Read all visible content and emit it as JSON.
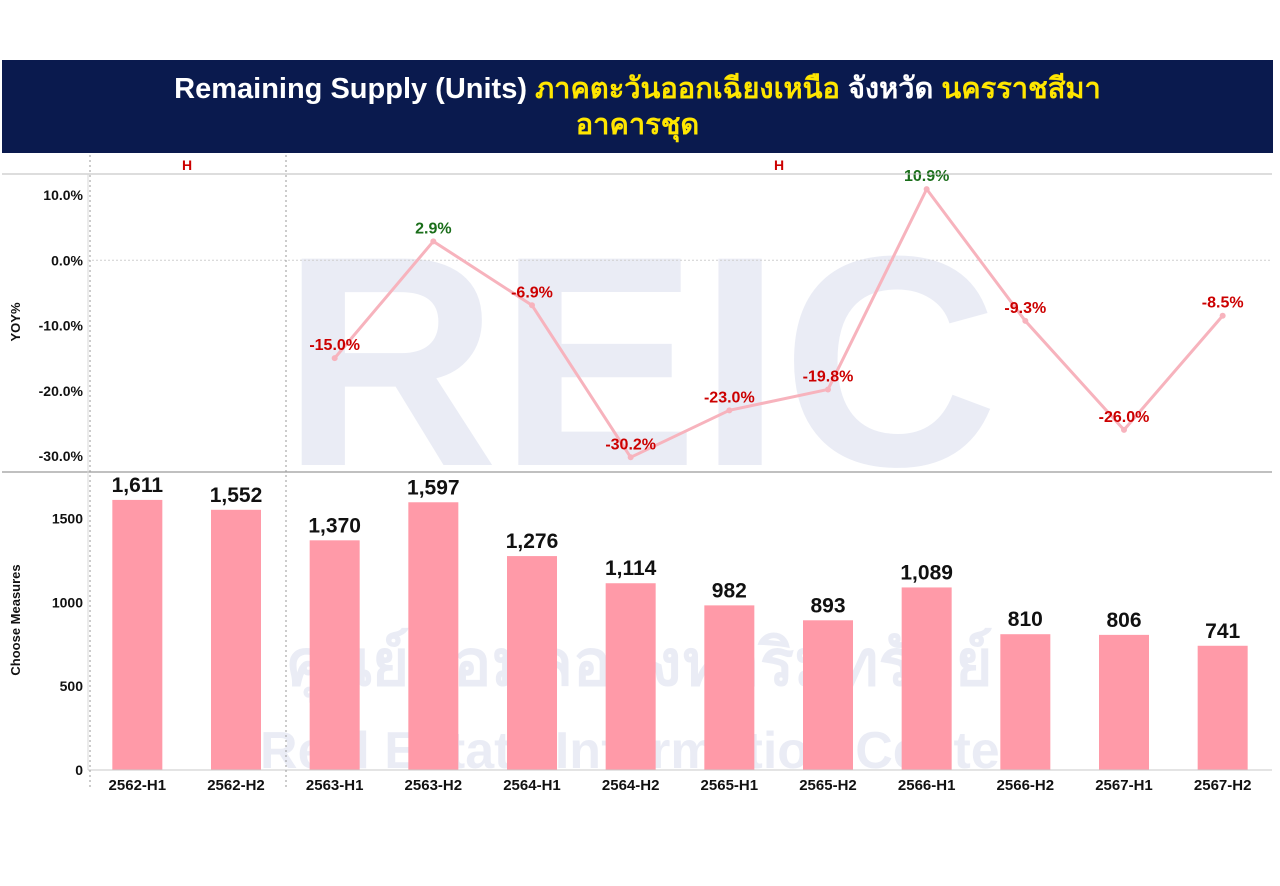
{
  "header": {
    "title_part1": "Remaining Supply (Units)",
    "title_part2": "ภาคตะวันออกเฉียงเหนือ",
    "title_part3": "จังหวัด",
    "title_part4": "นครราชสีมา",
    "subtitle": "อาคารชุด"
  },
  "watermark": {
    "logo": "REIC",
    "thai": "ศูนย์ข้อมูลอสังหาริมทรัพย์",
    "english": "Real Estate Information Center"
  },
  "colors": {
    "title_bg": "#0a1a4e",
    "bar": "#ff9aa8",
    "line": "#f7b3bd",
    "negative_label": "#cc0000",
    "positive_label": "#1a6e1a",
    "h_marker": "#cc0000"
  },
  "chart_data": [
    {
      "type": "line",
      "ylabel": "YOY%",
      "ylim": [
        -30,
        10
      ],
      "yticks": [
        "10.0%",
        "0.0%",
        "-10.0%",
        "-20.0%",
        "-30.0%"
      ],
      "grid": "dotted at 0",
      "group_markers": [
        "H",
        "H"
      ],
      "categories": [
        "2562-H1",
        "2562-H2",
        "2563-H1",
        "2563-H2",
        "2564-H1",
        "2564-H2",
        "2565-H1",
        "2565-H2",
        "2566-H1",
        "2566-H2",
        "2567-H1",
        "2567-H2"
      ],
      "values": [
        null,
        null,
        -15.0,
        2.9,
        -6.9,
        -30.2,
        -23.0,
        -19.8,
        10.9,
        -9.3,
        -26.0,
        -8.5
      ],
      "labels": [
        "",
        "",
        "-15.0%",
        "2.9%",
        "-6.9%",
        "-30.2%",
        "-23.0%",
        "-19.8%",
        "10.9%",
        "-9.3%",
        "-26.0%",
        "-8.5%"
      ]
    },
    {
      "type": "bar",
      "ylabel": "Choose Measures",
      "ylim": [
        0,
        1700
      ],
      "yticks": [
        "1500",
        "1000",
        "500",
        "0"
      ],
      "categories": [
        "2562-H1",
        "2562-H2",
        "2563-H1",
        "2563-H2",
        "2564-H1",
        "2564-H2",
        "2565-H1",
        "2565-H2",
        "2566-H1",
        "2566-H2",
        "2567-H1",
        "2567-H2"
      ],
      "values": [
        1611,
        1552,
        1370,
        1597,
        1276,
        1114,
        982,
        893,
        1089,
        810,
        806,
        741
      ],
      "labels": [
        "1,611",
        "1,552",
        "1,370",
        "1,597",
        "1,276",
        "1,114",
        "982",
        "893",
        "1,089",
        "810",
        "806",
        "741"
      ]
    }
  ]
}
